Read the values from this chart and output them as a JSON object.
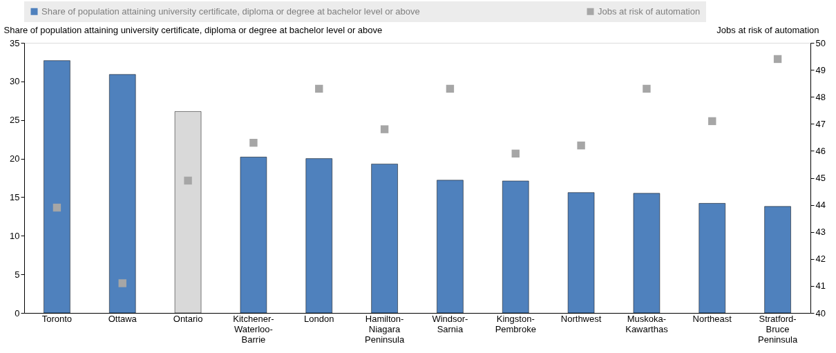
{
  "chart_data": {
    "type": "bar",
    "categories": [
      "Toronto",
      "Ottawa",
      "Ontario",
      "Kitchener-Waterloo-Barrie",
      "London",
      "Hamilton-Niagara Peninsula",
      "Windsor-Sarnia",
      "Kingston-Pembroke",
      "Northwest",
      "Muskoka-Kawarthas",
      "Northeast",
      "Stratford-Bruce Peninsula"
    ],
    "series": [
      {
        "name": "Share of population attaining university certificate, diploma or degree at bachelor level or above",
        "color": "#4f81bd",
        "colors": [
          "#4f81bd",
          "#4f81bd",
          "#d9d9d9",
          "#4f81bd",
          "#4f81bd",
          "#4f81bd",
          "#4f81bd",
          "#4f81bd",
          "#4f81bd",
          "#4f81bd",
          "#4f81bd",
          "#4f81bd"
        ],
        "values": [
          32.7,
          30.9,
          26.1,
          20.2,
          20.0,
          19.3,
          17.2,
          17.1,
          15.6,
          15.5,
          14.2,
          13.8
        ]
      },
      {
        "name": "Jobs at risk of automation",
        "type": "scatter",
        "axis": "y2",
        "marker": "square",
        "color": "#a6a6a6",
        "values": [
          43.9,
          41.1,
          44.9,
          46.3,
          48.3,
          46.8,
          48.3,
          45.9,
          46.2,
          48.3,
          47.1,
          49.4
        ]
      }
    ],
    "ylabel": "Share of population attaining university certificate, diploma or degree at bachelor level or above",
    "y2label": "Jobs at risk of automation",
    "ylim": [
      0,
      35
    ],
    "yticks": [
      0,
      5,
      10,
      15,
      20,
      25,
      30,
      35
    ],
    "y2lim": [
      40,
      50
    ],
    "y2ticks": [
      40,
      41,
      42,
      43,
      44,
      45,
      46,
      47,
      48,
      49,
      50
    ],
    "legend": "top"
  }
}
